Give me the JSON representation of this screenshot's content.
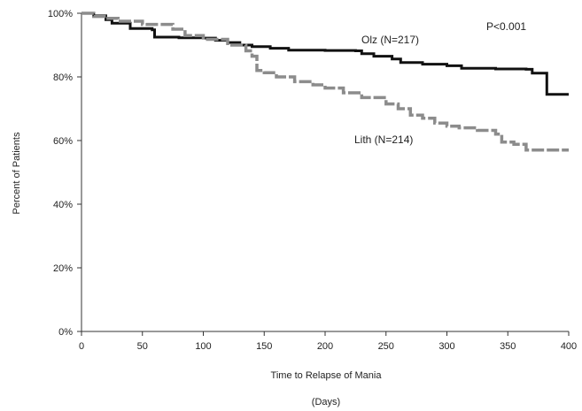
{
  "chart_data": {
    "type": "line",
    "title": "",
    "xlabel": "Time to Relapse of Mania",
    "xlabel_sub": "(Days)",
    "ylabel": "Percent of Patients",
    "xlim": [
      0,
      400
    ],
    "ylim": [
      0,
      100
    ],
    "x_ticks": [
      "0",
      "50",
      "100",
      "150",
      "200",
      "250",
      "300",
      "350",
      "400"
    ],
    "y_ticks": [
      "0%",
      "20%",
      "40%",
      "60%",
      "80%",
      "100%"
    ],
    "grid": false,
    "annotation_pvalue": "P<0.001",
    "series": [
      {
        "name": "Olz (N=217)",
        "color": "#111111",
        "style": "solid",
        "points": [
          [
            0,
            100
          ],
          [
            10,
            99.2
          ],
          [
            20,
            98
          ],
          [
            25,
            96.9
          ],
          [
            40,
            95.2
          ],
          [
            58,
            94.8
          ],
          [
            60,
            92.5
          ],
          [
            80,
            92.3
          ],
          [
            100,
            92.2
          ],
          [
            110,
            91.5
          ],
          [
            120,
            90.8
          ],
          [
            130,
            90.0
          ],
          [
            140,
            89.5
          ],
          [
            155,
            89.0
          ],
          [
            170,
            88.4
          ],
          [
            200,
            88.3
          ],
          [
            225,
            88.2
          ],
          [
            230,
            87.3
          ],
          [
            240,
            86.5
          ],
          [
            255,
            85.6
          ],
          [
            262,
            84.5
          ],
          [
            280,
            84.0
          ],
          [
            300,
            83.5
          ],
          [
            312,
            82.7
          ],
          [
            340,
            82.5
          ],
          [
            365,
            82.4
          ],
          [
            370,
            81.2
          ],
          [
            380,
            81.2
          ],
          [
            382,
            74.5
          ],
          [
            400,
            74.5
          ]
        ]
      },
      {
        "name": "Lith (N=214)",
        "color": "#8c8c8c",
        "style": "dashed",
        "points": [
          [
            0,
            100
          ],
          [
            10,
            99.0
          ],
          [
            20,
            98.4
          ],
          [
            30,
            97.5
          ],
          [
            50,
            96.5
          ],
          [
            75,
            95.0
          ],
          [
            85,
            93.0
          ],
          [
            100,
            91.8
          ],
          [
            120,
            90.0
          ],
          [
            135,
            88.2
          ],
          [
            140,
            86.5
          ],
          [
            144,
            82.0
          ],
          [
            150,
            81.3
          ],
          [
            160,
            80.0
          ],
          [
            175,
            78.5
          ],
          [
            190,
            77.5
          ],
          [
            200,
            76.5
          ],
          [
            215,
            75.0
          ],
          [
            230,
            73.5
          ],
          [
            250,
            71.5
          ],
          [
            260,
            70.0
          ],
          [
            270,
            68.0
          ],
          [
            280,
            67.0
          ],
          [
            290,
            65.5
          ],
          [
            300,
            64.5
          ],
          [
            310,
            64.0
          ],
          [
            325,
            63.2
          ],
          [
            340,
            62.0
          ],
          [
            345,
            59.5
          ],
          [
            355,
            58.8
          ],
          [
            365,
            57.0
          ],
          [
            400,
            57.0
          ]
        ]
      }
    ]
  }
}
